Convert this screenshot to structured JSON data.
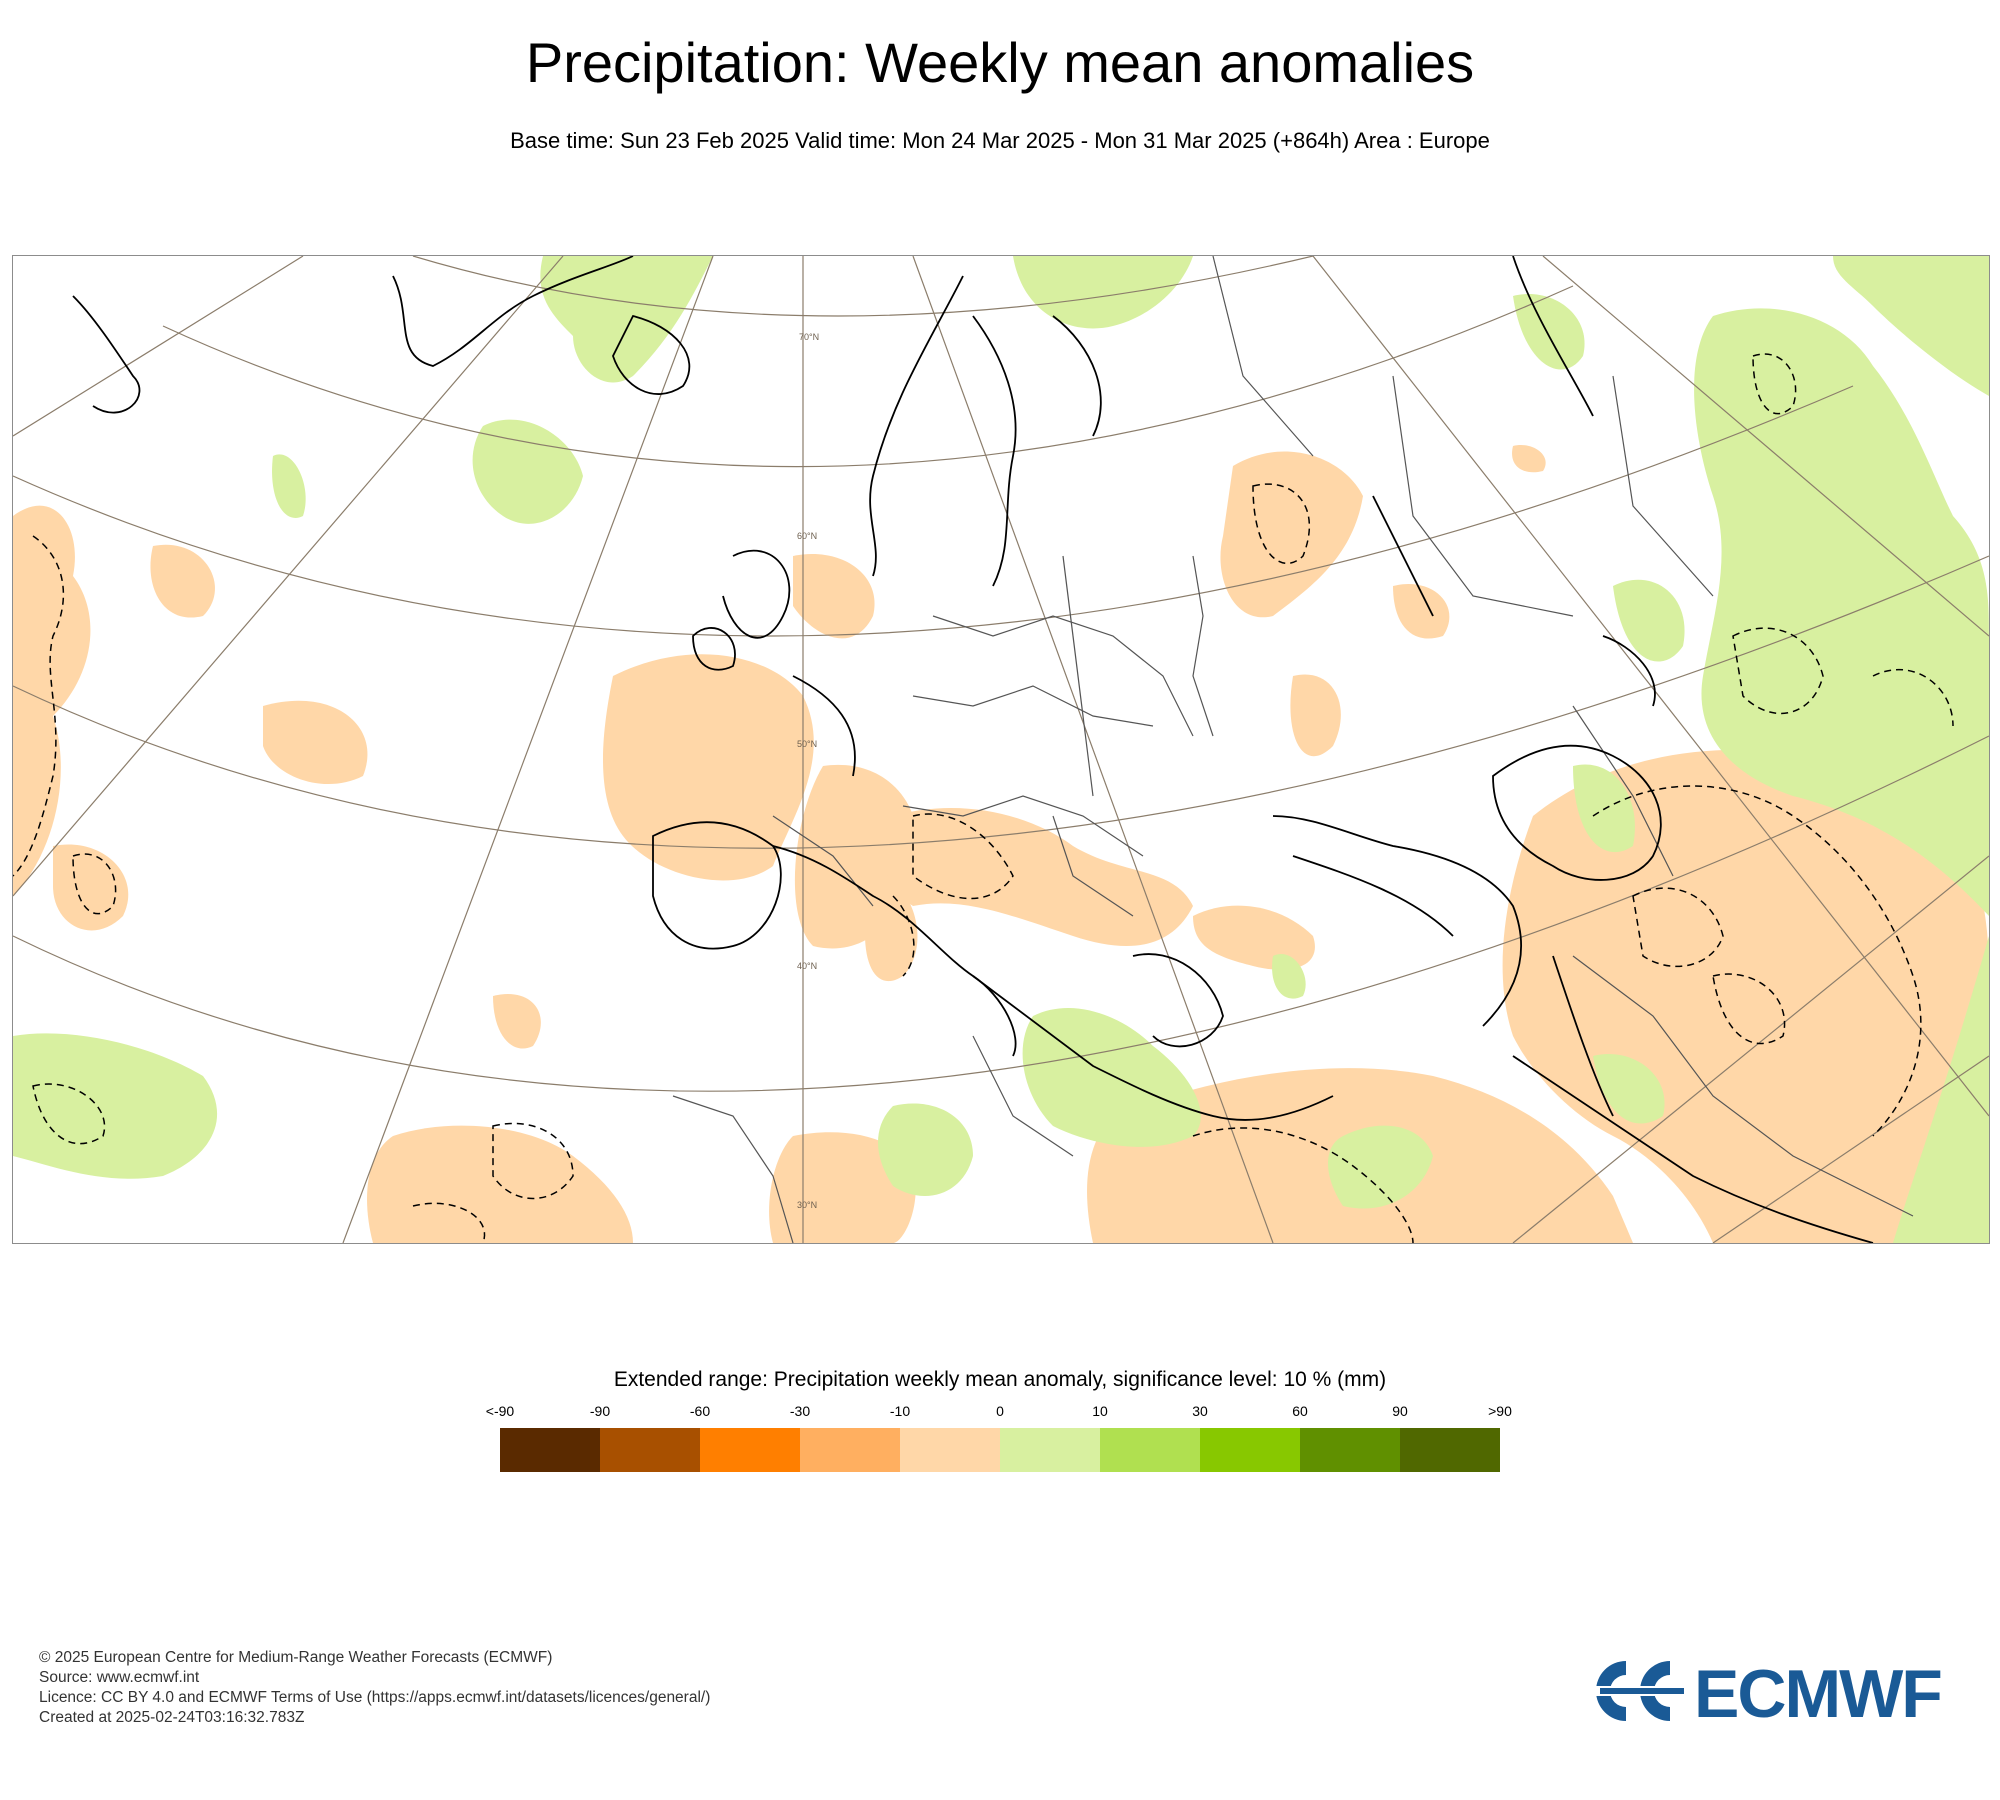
{
  "header": {
    "title": "Precipitation: Weekly mean anomalies",
    "subtitle": "Base time: Sun 23 Feb 2025 Valid time: Mon 24 Mar 2025 - Mon 31 Mar 2025 (+864h) Area : Europe"
  },
  "map": {
    "region": "Europe",
    "latitude_labels": [
      "70°N",
      "60°N",
      "50°N",
      "40°N",
      "30°N"
    ],
    "colors": {
      "frame": "#8c8c8c",
      "graticule": "#8b7d6b",
      "coastline": "#000000",
      "border": "#555555"
    }
  },
  "legend": {
    "title": "Extended range: Precipitation weekly mean anomaly, significance level: 10 % (mm)",
    "tick_labels": [
      "<-90",
      "-90",
      "-60",
      "-30",
      "-10",
      "0",
      "10",
      "30",
      "60",
      "90",
      ">90"
    ],
    "colors": [
      "#5a2a00",
      "#a85000",
      "#ff7f00",
      "#ffaf60",
      "#ffd7a8",
      "#d8f0a0",
      "#b0e050",
      "#88c800",
      "#609000",
      "#506800"
    ]
  },
  "footer": {
    "copyright": "© 2025 European Centre for Medium-Range Weather Forecasts (ECMWF)",
    "source": "Source: www.ecmwf.int",
    "licence": "Licence: CC BY 4.0 and ECMWF Terms of Use (https://apps.ecmwf.int/datasets/licences/general/)",
    "created": "Created at 2025-02-24T03:16:32.783Z"
  },
  "logo": {
    "text": "ECMWF",
    "color": "#1a5a96"
  }
}
